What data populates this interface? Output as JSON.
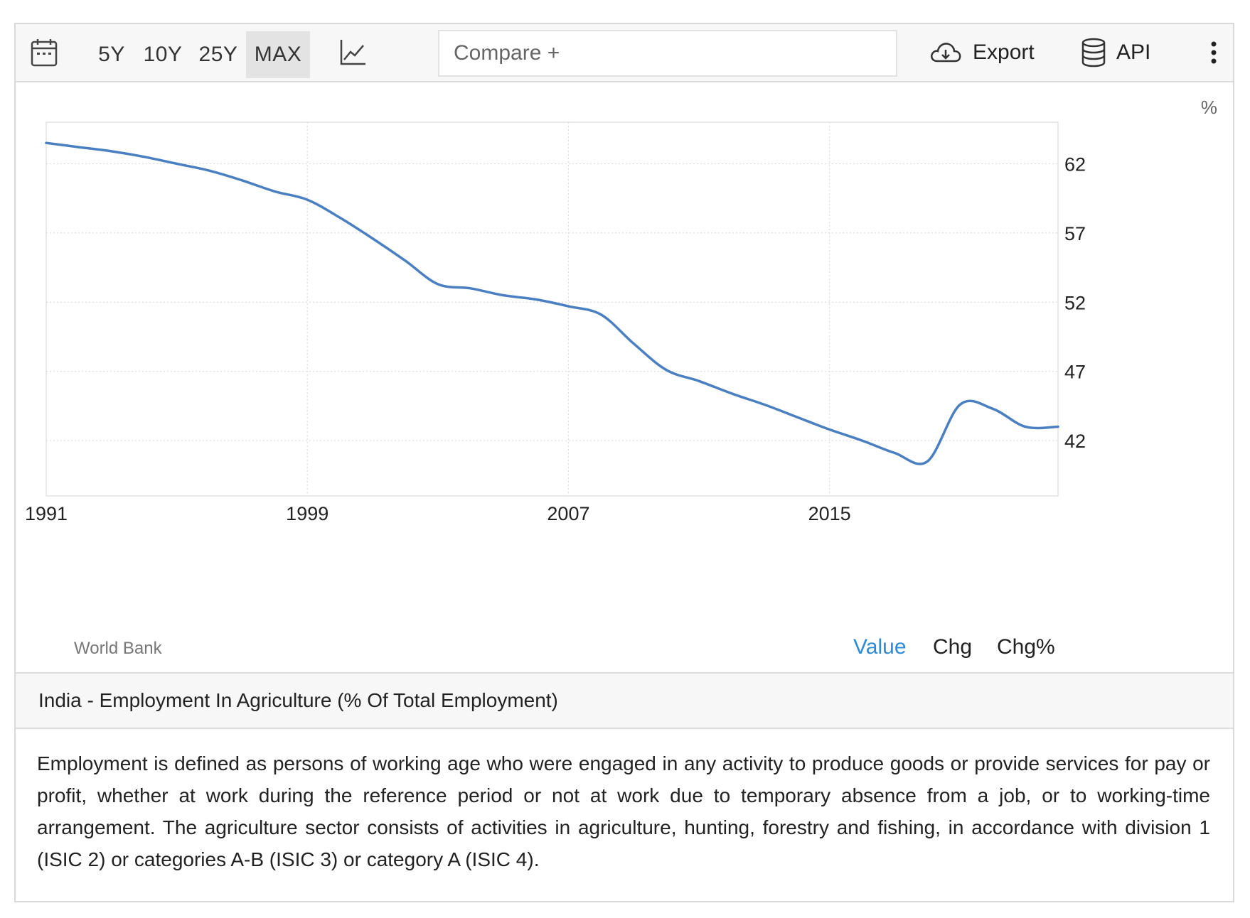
{
  "toolbar": {
    "ranges": [
      "5Y",
      "10Y",
      "25Y",
      "MAX"
    ],
    "active_range": "MAX",
    "compare_placeholder": "Compare +",
    "export_label": "Export",
    "api_label": "API"
  },
  "colors": {
    "line": "#4a7fc1",
    "active_tab": "#2b8bd8"
  },
  "chart_data": {
    "type": "line",
    "title": "India - Employment In Agriculture (% Of Total Employment)",
    "unit": "%",
    "source": "World Bank",
    "x": [
      1991,
      1992,
      1993,
      1994,
      1995,
      1996,
      1997,
      1998,
      1999,
      2000,
      2001,
      2002,
      2003,
      2004,
      2005,
      2006,
      2007,
      2008,
      2009,
      2010,
      2011,
      2012,
      2013,
      2014,
      2015,
      2016,
      2017,
      2018,
      2019,
      2020,
      2021,
      2022
    ],
    "values": [
      63.5,
      63.2,
      62.9,
      62.5,
      62.0,
      61.5,
      60.8,
      60.0,
      59.4,
      58.1,
      56.6,
      55.0,
      53.3,
      53.0,
      52.5,
      52.2,
      51.7,
      51.1,
      49.0,
      47.1,
      46.3,
      45.4,
      44.6,
      43.7,
      42.8,
      42.0,
      41.1,
      40.5,
      44.6,
      44.3,
      43.0,
      43.0
    ],
    "x_ticks": [
      1991,
      1999,
      2007,
      2015
    ],
    "y_ticks": [
      42,
      47,
      52,
      57,
      62
    ],
    "xlim": [
      1991,
      2022
    ],
    "ylim": [
      38,
      65
    ],
    "grid": true,
    "y_axis_side": "right"
  },
  "view_tabs": [
    "Value",
    "Chg",
    "Chg%"
  ],
  "active_view": "Value",
  "description": "Employment is defined as persons of working age who were engaged in any activity to produce goods or provide services for pay or profit, whether at work during the reference period or not at work due to temporary absence from a job, or to working-time arrangement. The agriculture sector consists of activities in agriculture, hunting, forestry and fishing, in accordance with division 1 (ISIC 2) or categories A-B (ISIC 3) or category A (ISIC 4)."
}
